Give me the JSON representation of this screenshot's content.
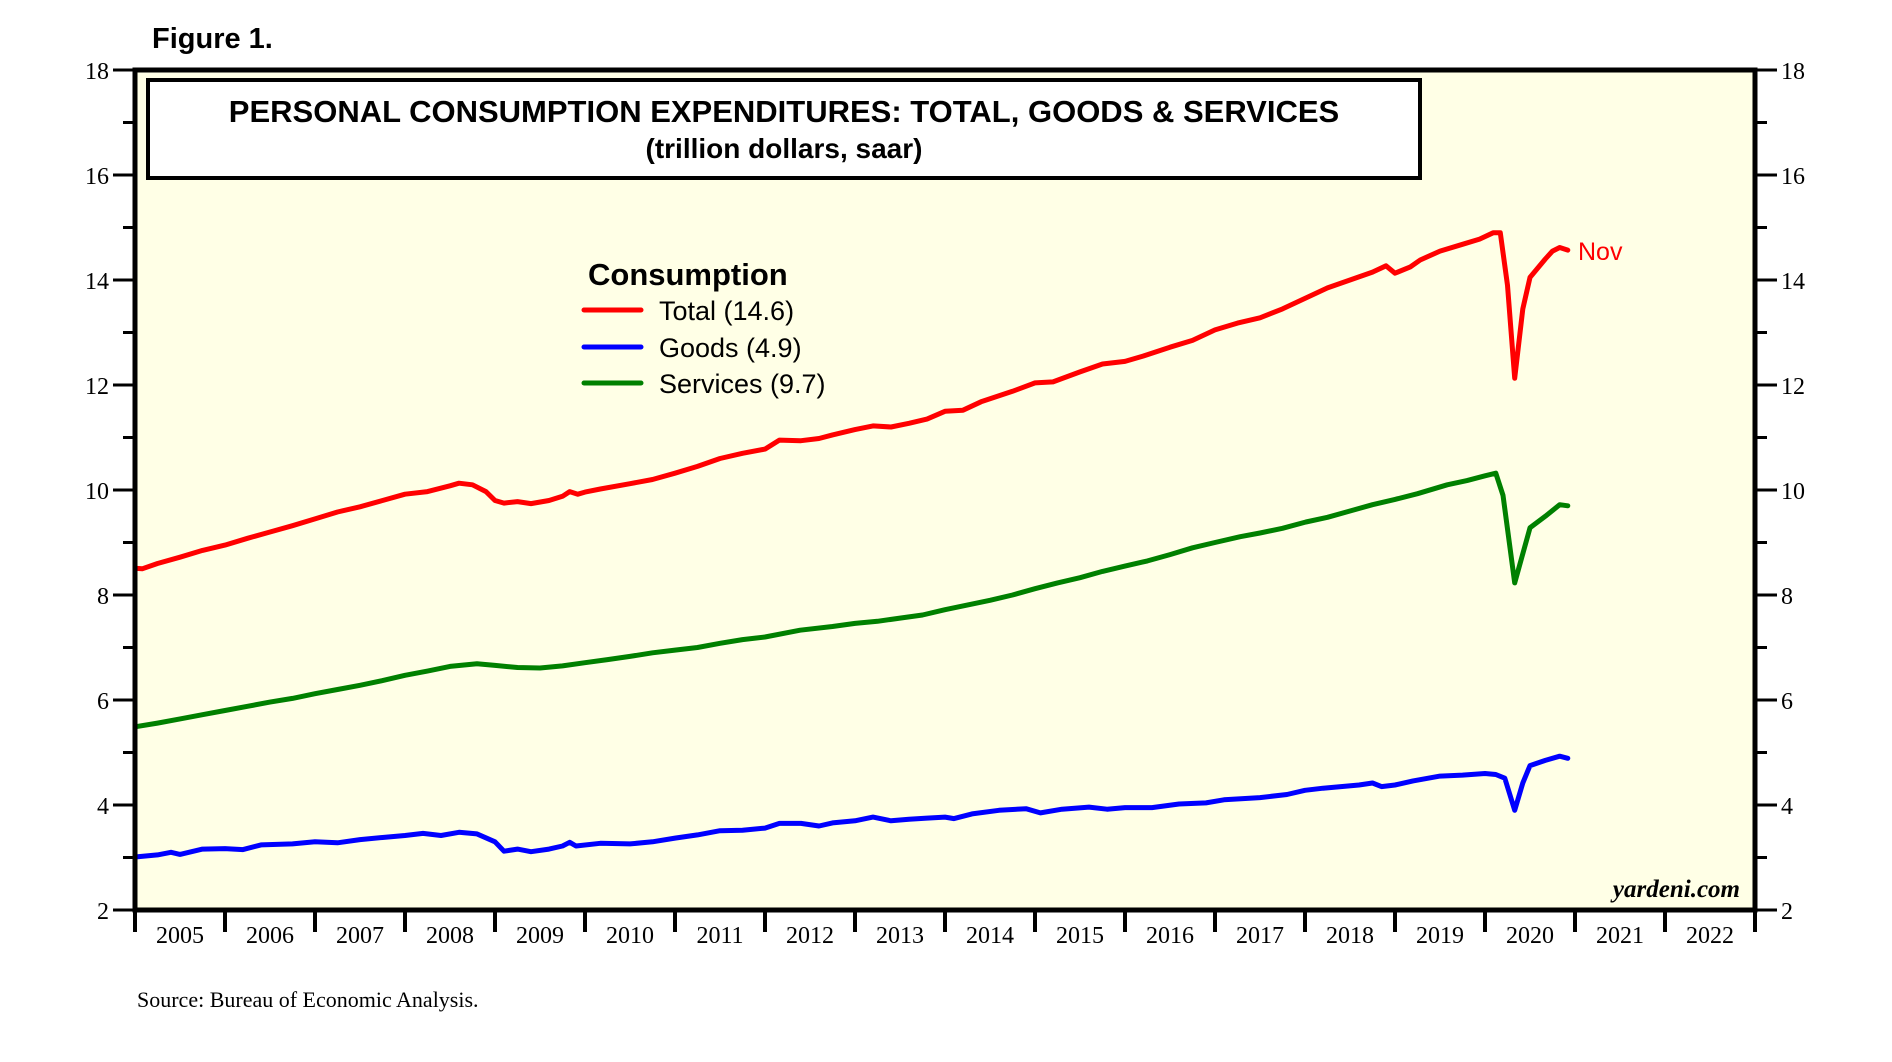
{
  "figure_label": "Figure 1.",
  "source": "Source: Bureau of Economic Analysis.",
  "brand": "yardeni.com",
  "chart_data": {
    "type": "line",
    "title": "PERSONAL CONSUMPTION EXPENDITURES: TOTAL, GOODS & SERVICES",
    "subtitle": "(trillion dollars, saar)",
    "xlabel": "",
    "ylabel": "",
    "xlim": [
      2005,
      2023
    ],
    "ylim": [
      2,
      18
    ],
    "y_ticks": [
      2,
      4,
      6,
      8,
      10,
      12,
      14,
      16,
      18
    ],
    "y_ticks_minor": [
      3,
      5,
      7,
      9,
      11,
      13,
      15,
      17
    ],
    "x_tick_labels": [
      "2005",
      "2006",
      "2007",
      "2008",
      "2009",
      "2010",
      "2011",
      "2012",
      "2013",
      "2014",
      "2015",
      "2016",
      "2017",
      "2018",
      "2019",
      "2020",
      "2021",
      "2022"
    ],
    "y_axes": "left-and-right",
    "grid": false,
    "background": "#ffffe6",
    "legend": {
      "title": "Consumption",
      "placement": "upper-left-center",
      "entries": [
        "Total (14.6)",
        "Goods (4.9)",
        "Services (9.7)"
      ]
    },
    "end_label": {
      "series": "Total",
      "text": "Nov"
    },
    "series": [
      {
        "name": "Total",
        "legend": "Total (14.6)",
        "color": "#ff0000",
        "latest": 14.6,
        "x": [
          2005.0,
          2005.08,
          2005.25,
          2005.5,
          2005.75,
          2006.0,
          2006.25,
          2006.5,
          2006.75,
          2007.0,
          2007.25,
          2007.5,
          2007.75,
          2008.0,
          2008.25,
          2008.5,
          2008.6,
          2008.75,
          2008.9,
          2009.0,
          2009.1,
          2009.25,
          2009.4,
          2009.6,
          2009.75,
          2009.83,
          2009.92,
          2010.0,
          2010.17,
          2010.5,
          2010.75,
          2011.0,
          2011.25,
          2011.5,
          2011.75,
          2012.0,
          2012.16,
          2012.4,
          2012.6,
          2012.75,
          2013.0,
          2013.2,
          2013.4,
          2013.6,
          2013.8,
          2014.0,
          2014.2,
          2014.4,
          2014.75,
          2015.0,
          2015.2,
          2015.5,
          2015.75,
          2016.0,
          2016.2,
          2016.5,
          2016.75,
          2017.0,
          2017.25,
          2017.5,
          2017.75,
          2018.0,
          2018.25,
          2018.5,
          2018.75,
          2018.9,
          2019.0,
          2019.17,
          2019.28,
          2019.5,
          2019.75,
          2019.94,
          2020.09,
          2020.17,
          2020.25,
          2020.33,
          2020.42,
          2020.5,
          2020.67,
          2020.75,
          2020.83,
          2020.92
        ],
        "values": [
          8.51,
          8.5,
          8.6,
          8.72,
          8.85,
          8.95,
          9.08,
          9.2,
          9.32,
          9.45,
          9.58,
          9.68,
          9.8,
          9.92,
          9.97,
          10.08,
          10.13,
          10.1,
          9.97,
          9.8,
          9.75,
          9.78,
          9.74,
          9.8,
          9.88,
          9.97,
          9.92,
          9.96,
          10.02,
          10.12,
          10.2,
          10.32,
          10.45,
          10.6,
          10.7,
          10.78,
          10.95,
          10.94,
          10.98,
          11.05,
          11.15,
          11.22,
          11.2,
          11.27,
          11.35,
          11.5,
          11.52,
          11.68,
          11.88,
          12.04,
          12.06,
          12.25,
          12.4,
          12.45,
          12.55,
          12.72,
          12.85,
          13.05,
          13.18,
          13.28,
          13.45,
          13.65,
          13.85,
          14.0,
          14.15,
          14.27,
          14.13,
          14.25,
          14.38,
          14.55,
          14.68,
          14.78,
          14.9,
          14.9,
          13.9,
          12.13,
          13.45,
          14.05,
          14.4,
          14.55,
          14.62,
          14.57
        ]
      },
      {
        "name": "Goods",
        "legend": "Goods (4.9)",
        "color": "#0000ff",
        "latest": 4.9,
        "x": [
          2005.0,
          2005.25,
          2005.4,
          2005.5,
          2005.75,
          2006.0,
          2006.2,
          2006.4,
          2006.75,
          2007.0,
          2007.25,
          2007.5,
          2007.75,
          2008.0,
          2008.2,
          2008.4,
          2008.6,
          2008.8,
          2009.0,
          2009.1,
          2009.25,
          2009.4,
          2009.6,
          2009.75,
          2009.83,
          2009.9,
          2010.17,
          2010.5,
          2010.75,
          2011.0,
          2011.25,
          2011.5,
          2011.75,
          2012.0,
          2012.16,
          2012.4,
          2012.6,
          2012.75,
          2013.0,
          2013.2,
          2013.4,
          2013.6,
          2013.8,
          2014.0,
          2014.1,
          2014.3,
          2014.6,
          2014.9,
          2015.06,
          2015.3,
          2015.6,
          2015.8,
          2016.0,
          2016.3,
          2016.6,
          2016.9,
          2017.1,
          2017.5,
          2017.8,
          2018.0,
          2018.2,
          2018.4,
          2018.6,
          2018.75,
          2018.85,
          2019.0,
          2019.2,
          2019.5,
          2019.75,
          2020.0,
          2020.12,
          2020.22,
          2020.33,
          2020.42,
          2020.5,
          2020.67,
          2020.83,
          2020.92
        ],
        "values": [
          3.01,
          3.05,
          3.1,
          3.06,
          3.16,
          3.17,
          3.15,
          3.24,
          3.26,
          3.3,
          3.28,
          3.34,
          3.38,
          3.42,
          3.46,
          3.42,
          3.48,
          3.45,
          3.3,
          3.12,
          3.16,
          3.11,
          3.16,
          3.22,
          3.29,
          3.22,
          3.27,
          3.26,
          3.3,
          3.37,
          3.43,
          3.51,
          3.52,
          3.56,
          3.65,
          3.65,
          3.6,
          3.66,
          3.7,
          3.77,
          3.7,
          3.73,
          3.75,
          3.77,
          3.74,
          3.83,
          3.9,
          3.93,
          3.85,
          3.92,
          3.96,
          3.92,
          3.95,
          3.95,
          4.02,
          4.04,
          4.1,
          4.14,
          4.2,
          4.28,
          4.32,
          4.35,
          4.38,
          4.42,
          4.35,
          4.38,
          4.46,
          4.55,
          4.57,
          4.6,
          4.58,
          4.51,
          3.9,
          4.42,
          4.75,
          4.85,
          4.93,
          4.89
        ]
      },
      {
        "name": "Services",
        "legend": "Services (9.7)",
        "color": "#008000",
        "latest": 9.7,
        "x": [
          2005.0,
          2005.25,
          2005.5,
          2005.75,
          2006.0,
          2006.25,
          2006.5,
          2006.75,
          2007.0,
          2007.25,
          2007.5,
          2007.75,
          2008.0,
          2008.25,
          2008.5,
          2008.8,
          2009.0,
          2009.25,
          2009.5,
          2009.75,
          2010.0,
          2010.25,
          2010.5,
          2010.75,
          2011.0,
          2011.25,
          2011.5,
          2011.75,
          2012.0,
          2012.39,
          2012.75,
          2013.0,
          2013.25,
          2013.5,
          2013.75,
          2014.0,
          2014.14,
          2014.5,
          2014.75,
          2015.0,
          2015.25,
          2015.5,
          2015.75,
          2016.0,
          2016.25,
          2016.5,
          2016.75,
          2017.0,
          2017.28,
          2017.5,
          2017.75,
          2018.01,
          2018.25,
          2018.5,
          2018.75,
          2019.0,
          2019.25,
          2019.58,
          2019.8,
          2020.0,
          2020.12,
          2020.2,
          2020.33,
          2020.5,
          2020.67,
          2020.83,
          2020.92
        ],
        "values": [
          5.49,
          5.56,
          5.64,
          5.72,
          5.8,
          5.88,
          5.96,
          6.03,
          6.12,
          6.2,
          6.28,
          6.37,
          6.47,
          6.55,
          6.64,
          6.69,
          6.66,
          6.62,
          6.61,
          6.65,
          6.71,
          6.77,
          6.83,
          6.9,
          6.95,
          7.0,
          7.08,
          7.15,
          7.2,
          7.33,
          7.4,
          7.46,
          7.5,
          7.56,
          7.62,
          7.72,
          7.77,
          7.9,
          8.0,
          8.12,
          8.23,
          8.33,
          8.45,
          8.55,
          8.65,
          8.77,
          8.9,
          9.0,
          9.11,
          9.18,
          9.27,
          9.39,
          9.48,
          9.6,
          9.72,
          9.82,
          9.93,
          10.1,
          10.18,
          10.27,
          10.32,
          9.9,
          8.23,
          9.28,
          9.5,
          9.72,
          9.7
        ]
      }
    ]
  }
}
